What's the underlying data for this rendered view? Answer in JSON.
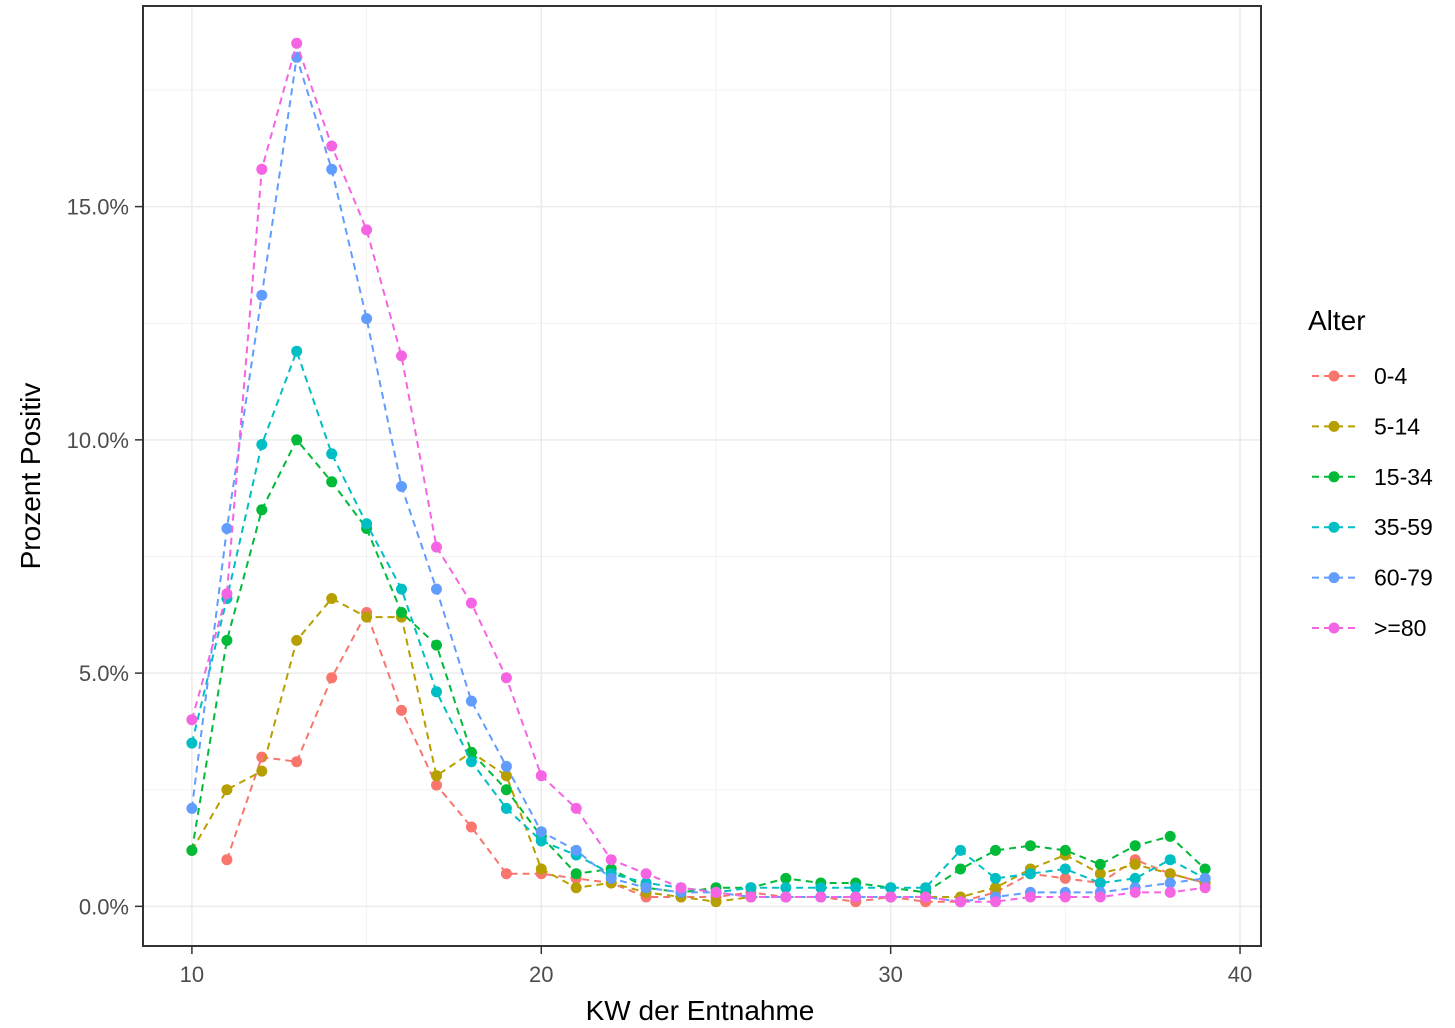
{
  "chart_data": {
    "type": "line",
    "xlabel": "KW der Entnahme",
    "ylabel": "Prozent Positiv",
    "xlim": [
      8.6,
      40.6
    ],
    "ylim": [
      -0.0085,
      0.193
    ],
    "x_ticks": [
      10,
      20,
      30,
      40
    ],
    "x_tick_labels": [
      "10",
      "20",
      "30",
      "40"
    ],
    "y_ticks": [
      0,
      0.05,
      0.1,
      0.15
    ],
    "y_tick_labels": [
      "0.0%",
      "5.0%",
      "10.0%",
      "15.0%"
    ],
    "grid": true,
    "line_style": "dashed",
    "legend": {
      "title": "Alter",
      "position": "right"
    },
    "series": [
      {
        "name": "0-4",
        "color": "#F8766D",
        "x": [
          10,
          11,
          12,
          13,
          14,
          15,
          16,
          17,
          18,
          19,
          20,
          21,
          22,
          23,
          24,
          25,
          26,
          27,
          28,
          29,
          30,
          31,
          32,
          33,
          34,
          35,
          36,
          37,
          38,
          39
        ],
        "y": [
          null,
          0.01,
          0.032,
          0.031,
          0.049,
          0.063,
          0.042,
          0.026,
          0.017,
          0.007,
          0.007,
          0.006,
          0.005,
          0.002,
          0.002,
          0.002,
          0.003,
          0.002,
          0.002,
          0.001,
          0.002,
          0.001,
          0.001,
          0.003,
          0.007,
          0.006,
          0.005,
          0.01,
          0.007,
          0.005
        ]
      },
      {
        "name": "5-14",
        "color": "#B79F00",
        "x": [
          10,
          11,
          12,
          13,
          14,
          15,
          16,
          17,
          18,
          19,
          20,
          21,
          22,
          23,
          24,
          25,
          26,
          27,
          28,
          29,
          30,
          31,
          32,
          33,
          34,
          35,
          36,
          37,
          38,
          39
        ],
        "y": [
          0.012,
          0.025,
          0.029,
          0.057,
          0.066,
          0.062,
          0.062,
          0.028,
          0.033,
          0.028,
          0.008,
          0.004,
          0.005,
          0.003,
          0.002,
          0.001,
          0.002,
          0.002,
          0.002,
          0.002,
          0.002,
          0.002,
          0.002,
          0.004,
          0.008,
          0.011,
          0.007,
          0.009,
          0.007,
          0.005
        ]
      },
      {
        "name": "15-34",
        "color": "#00BA38",
        "x": [
          10,
          11,
          12,
          13,
          14,
          15,
          16,
          17,
          18,
          19,
          20,
          21,
          22,
          23,
          24,
          25,
          26,
          27,
          28,
          29,
          30,
          31,
          32,
          33,
          34,
          35,
          36,
          37,
          38,
          39
        ],
        "y": [
          0.012,
          0.057,
          0.085,
          0.1,
          0.091,
          0.081,
          0.063,
          0.056,
          0.033,
          0.025,
          0.015,
          0.007,
          0.008,
          0.004,
          0.003,
          0.004,
          0.004,
          0.006,
          0.005,
          0.005,
          0.004,
          0.003,
          0.008,
          0.012,
          0.013,
          0.012,
          0.009,
          0.013,
          0.015,
          0.008
        ]
      },
      {
        "name": "35-59",
        "color": "#00BFC4",
        "x": [
          10,
          11,
          12,
          13,
          14,
          15,
          16,
          17,
          18,
          19,
          20,
          21,
          22,
          23,
          24,
          25,
          26,
          27,
          28,
          29,
          30,
          31,
          32,
          33,
          34,
          35,
          36,
          37,
          38,
          39
        ],
        "y": [
          0.035,
          0.066,
          0.099,
          0.119,
          0.097,
          0.082,
          0.068,
          0.046,
          0.031,
          0.021,
          0.014,
          0.011,
          0.007,
          0.005,
          0.004,
          0.003,
          0.004,
          0.004,
          0.004,
          0.004,
          0.004,
          0.004,
          0.012,
          0.006,
          0.007,
          0.008,
          0.005,
          0.006,
          0.01,
          0.006
        ]
      },
      {
        "name": "60-79",
        "color": "#619CFF",
        "x": [
          10,
          11,
          12,
          13,
          14,
          15,
          16,
          17,
          18,
          19,
          20,
          21,
          22,
          23,
          24,
          25,
          26,
          27,
          28,
          29,
          30,
          31,
          32,
          33,
          34,
          35,
          36,
          37,
          38,
          39
        ],
        "y": [
          0.021,
          0.081,
          0.131,
          0.182,
          0.158,
          0.126,
          0.09,
          0.068,
          0.044,
          0.03,
          0.016,
          0.012,
          0.006,
          0.004,
          0.003,
          0.003,
          0.002,
          0.002,
          0.002,
          0.002,
          0.002,
          0.002,
          0.001,
          0.002,
          0.003,
          0.003,
          0.003,
          0.004,
          0.005,
          0.006
        ]
      },
      {
        "name": ">=80",
        "color": "#F564E3",
        "x": [
          10,
          11,
          12,
          13,
          14,
          15,
          16,
          17,
          18,
          19,
          20,
          21,
          22,
          23,
          24,
          25,
          26,
          27,
          28,
          29,
          30,
          31,
          32,
          33,
          34,
          35,
          36,
          37,
          38,
          39
        ],
        "y": [
          0.04,
          0.067,
          0.158,
          0.185,
          0.163,
          0.145,
          0.118,
          0.077,
          0.065,
          0.049,
          0.028,
          0.021,
          0.01,
          0.007,
          0.004,
          0.003,
          0.002,
          0.002,
          0.002,
          0.002,
          0.002,
          0.002,
          0.001,
          0.001,
          0.002,
          0.002,
          0.002,
          0.003,
          0.003,
          0.004
        ]
      }
    ]
  }
}
